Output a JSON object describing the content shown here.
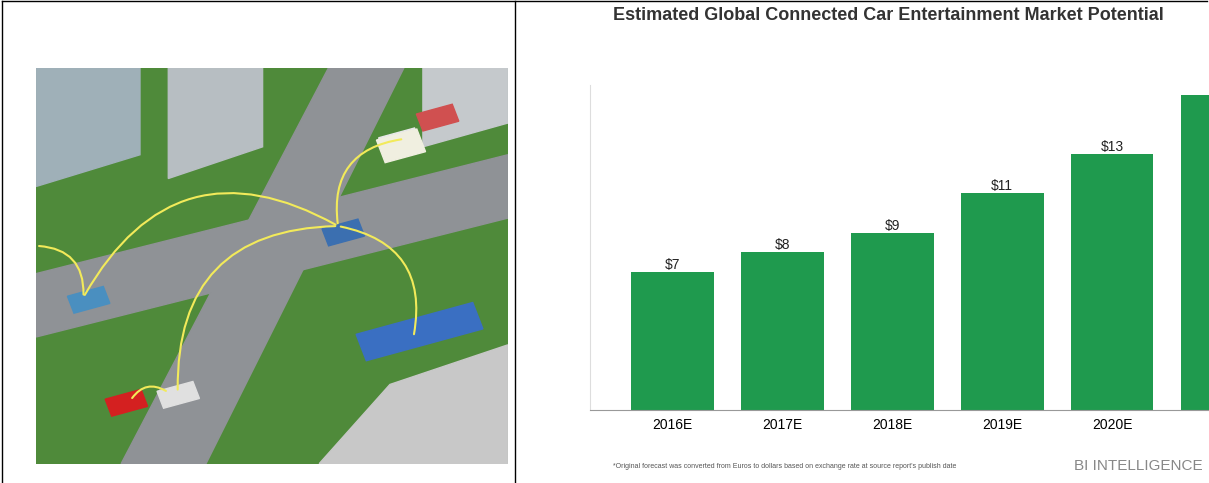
{
  "chart_data": {
    "type": "bar",
    "title": "Estimated Global Connected Car Entertainment Market Potential",
    "categories": [
      "2016E",
      "2017E",
      "2018E",
      "2019E",
      "2020E",
      null
    ],
    "values": [
      7,
      8,
      9,
      11,
      13,
      16
    ],
    "value_labels": [
      "$7",
      "$8",
      "$9",
      "$11",
      "$13",
      null
    ],
    "data_labels": true,
    "color": "#1f9a4e",
    "ylim": [
      0,
      16.5
    ],
    "yticks": [],
    "tick_labels": "x",
    "grid": false,
    "footnote": "*Original forecast was converted from Euros to dollars based on exchange rate at source report's publish date",
    "source": "BI INTELLIGENCE"
  }
}
